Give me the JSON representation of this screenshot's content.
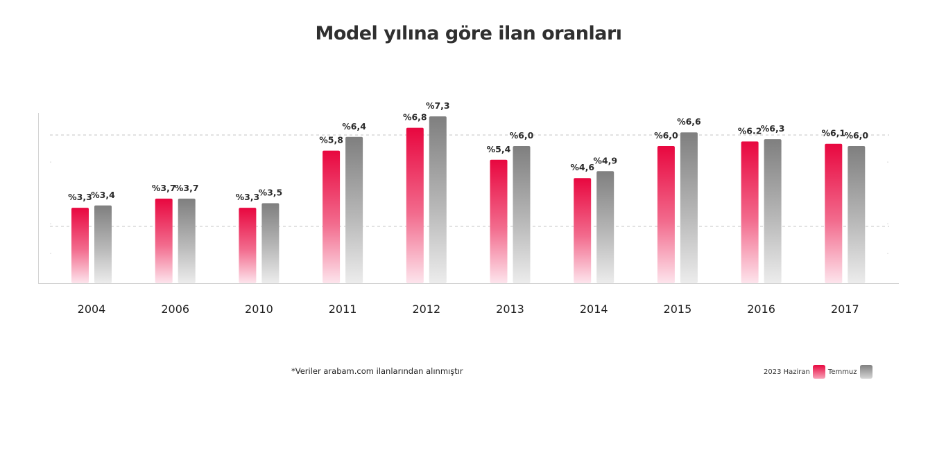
{
  "chart_data": {
    "type": "bar",
    "title": "Model yılına göre ilan oranları",
    "categories": [
      "2004",
      "2006",
      "2010",
      "2011",
      "2012",
      "2013",
      "2014",
      "2015",
      "2016",
      "2017"
    ],
    "series": [
      {
        "name": "2023 Haziran",
        "color": "#e8073f",
        "values": [
          3.3,
          3.7,
          3.3,
          5.8,
          6.8,
          5.4,
          4.6,
          6.0,
          6.2,
          6.1
        ],
        "labels": [
          "%3,3",
          "%3,7",
          "%3,3",
          "%5,8",
          "%6,8",
          "%5,4",
          "%4,6",
          "%6,0",
          "%6.2",
          "%6,1"
        ]
      },
      {
        "name": "Temmuz",
        "color": "#888888",
        "values": [
          3.4,
          3.7,
          3.5,
          6.4,
          7.3,
          6.0,
          4.9,
          6.6,
          6.3,
          6.0
        ],
        "labels": [
          "%3,4",
          "%3,7",
          "%3,5",
          "%6,4",
          "%7,3",
          "%6,0",
          "%4,9",
          "%6,6",
          "%6,3",
          "%6,0"
        ]
      }
    ],
    "ylim": [
      0,
      7.5
    ],
    "grid": "dashed horizontal",
    "legend_position": "bottom-right"
  },
  "footnote": "*Veriler arabam.com ilanlarından alınmıştır",
  "legend": {
    "haziran_label": "2023 Haziran",
    "temmuz_label": "Temmuz"
  }
}
